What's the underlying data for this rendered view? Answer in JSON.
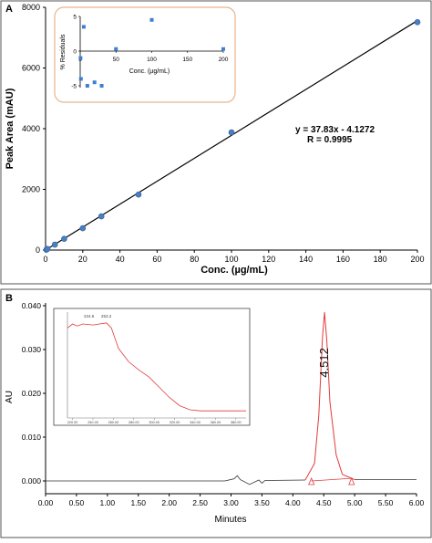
{
  "panel_a": {
    "label": "A",
    "equation": "y = 37.83x - 4.1272",
    "r_value": "R = 0.9995",
    "inset": {
      "x_ticks": [
        0,
        50,
        100,
        150,
        200
      ],
      "y_ticks": [
        -5,
        0,
        5
      ]
    }
  },
  "panel_b": {
    "label": "B",
    "peak_label": "4.512",
    "inset": {
      "x_ticks": [
        "220.00",
        "240.00",
        "260.00",
        "280.00",
        "300.00",
        "320.00",
        "340.00",
        "360.00",
        "380.00"
      ],
      "peak_labels": [
        "224.6",
        "253.2"
      ]
    }
  },
  "chart_data": [
    {
      "type": "scatter",
      "title": "",
      "xlabel": "Conc. (µg/mL)",
      "ylabel": "Peak Area (mAU)",
      "xlim": [
        0,
        200
      ],
      "ylim": [
        0,
        8000
      ],
      "x_ticks": [
        0,
        20,
        40,
        60,
        80,
        100,
        120,
        140,
        160,
        180,
        200
      ],
      "y_ticks": [
        0,
        2000,
        4000,
        6000,
        8000
      ],
      "series": [
        {
          "x": [
            0.5,
            1,
            5,
            10,
            20,
            30,
            50,
            100,
            200
          ],
          "y": [
            15,
            35,
            180,
            370,
            720,
            1110,
            1830,
            3880,
            7510
          ]
        }
      ],
      "fit": {
        "slope": 37.83,
        "intercept": -4.1272
      },
      "grid": false
    },
    {
      "type": "scatter",
      "title": "",
      "xlabel": "Conc. (µg/mL)",
      "ylabel": "% Residuals",
      "xlim": [
        0,
        200
      ],
      "ylim": [
        -5,
        5
      ],
      "series": [
        {
          "x": [
            0.5,
            1,
            5,
            10,
            20,
            30,
            50,
            100,
            200
          ],
          "y": [
            -1,
            -4,
            3.5,
            -5,
            -4.5,
            -5,
            0.3,
            4.5,
            0.3
          ]
        }
      ],
      "grid": false
    },
    {
      "type": "line",
      "title": "",
      "xlabel": "Minutes",
      "ylabel": "AU",
      "xlim": [
        0,
        6
      ],
      "ylim": [
        -0.003,
        0.04
      ],
      "x_ticks": [
        "0.00",
        "0.50",
        "1.00",
        "1.50",
        "2.00",
        "2.50",
        "3.00",
        "3.50",
        "4.00",
        "4.50",
        "5.00",
        "5.50",
        "6.00"
      ],
      "y_ticks": [
        "0.000",
        "0.010",
        "0.020",
        "0.030",
        "0.040"
      ],
      "series": [
        {
          "x": [
            0,
            2.9,
            3.05,
            3.1,
            3.15,
            3.3,
            3.45,
            3.5,
            3.55,
            4.2,
            4.35,
            4.42,
            4.48,
            4.512,
            4.55,
            4.6,
            4.7,
            4.8,
            5.0,
            6.0
          ],
          "y": [
            0,
            0,
            0.0005,
            0.0012,
            0.0003,
            -0.0008,
            0.0002,
            -0.0005,
            0.0001,
            0.0002,
            0.004,
            0.015,
            0.033,
            0.0385,
            0.032,
            0.018,
            0.006,
            0.0015,
            0.0003,
            0.0003
          ]
        }
      ],
      "grid": false
    },
    {
      "type": "line",
      "title": "",
      "x_ticks": [
        "220.00",
        "240.00",
        "260.00",
        "280.00",
        "300.00",
        "320.00",
        "340.00",
        "360.00",
        "380.00"
      ],
      "xlim": [
        215,
        390
      ],
      "ylim": [
        0,
        1
      ],
      "series": [
        {
          "x": [
            215,
            220,
            224.6,
            230,
            240,
            253.2,
            258,
            265,
            275,
            285,
            295,
            305,
            315,
            325,
            335,
            345,
            390
          ],
          "y": [
            0.88,
            0.92,
            0.9,
            0.92,
            0.91,
            0.93,
            0.88,
            0.68,
            0.55,
            0.47,
            0.4,
            0.3,
            0.2,
            0.12,
            0.08,
            0.07,
            0.07
          ]
        }
      ],
      "annotations": [
        "224.6",
        "253.2"
      ],
      "grid": false
    }
  ]
}
